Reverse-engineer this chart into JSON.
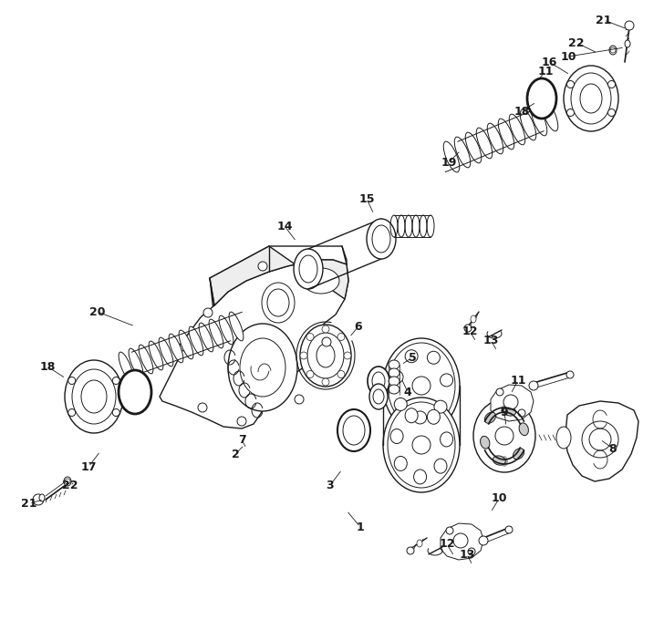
{
  "background_color": "#ffffff",
  "line_color": "#1a1a1a",
  "figsize": [
    7.28,
    6.91
  ],
  "dpi": 100,
  "labels": [
    [
      "1",
      395,
      578,
      380,
      560
    ],
    [
      "2",
      258,
      498,
      268,
      488
    ],
    [
      "3",
      362,
      532,
      375,
      515
    ],
    [
      "4",
      447,
      430,
      440,
      415
    ],
    [
      "5",
      452,
      392,
      440,
      400
    ],
    [
      "6",
      393,
      358,
      383,
      370
    ],
    [
      "7",
      265,
      482,
      270,
      492
    ],
    [
      "8",
      672,
      492,
      658,
      482
    ],
    [
      "9",
      553,
      452,
      555,
      468
    ],
    [
      "10",
      547,
      547,
      538,
      562
    ],
    [
      "10",
      623,
      62,
      685,
      52
    ],
    [
      "11",
      568,
      417,
      560,
      432
    ],
    [
      "11",
      598,
      78,
      590,
      88
    ],
    [
      "12",
      515,
      363,
      522,
      375
    ],
    [
      "12",
      490,
      597,
      498,
      610
    ],
    [
      "13",
      538,
      373,
      545,
      385
    ],
    [
      "13",
      512,
      608,
      518,
      620
    ],
    [
      "14",
      312,
      248,
      325,
      265
    ],
    [
      "15",
      402,
      218,
      410,
      235
    ],
    [
      "16",
      602,
      68,
      625,
      82
    ],
    [
      "17",
      97,
      512,
      110,
      495
    ],
    [
      "18",
      52,
      402,
      72,
      415
    ],
    [
      "18",
      572,
      122,
      588,
      112
    ],
    [
      "19",
      492,
      178,
      505,
      165
    ],
    [
      "20",
      107,
      342,
      148,
      358
    ],
    [
      "21",
      32,
      552,
      48,
      548
    ],
    [
      "21",
      662,
      22,
      688,
      32
    ],
    [
      "22",
      77,
      533,
      82,
      528
    ],
    [
      "22",
      632,
      47,
      655,
      58
    ]
  ]
}
